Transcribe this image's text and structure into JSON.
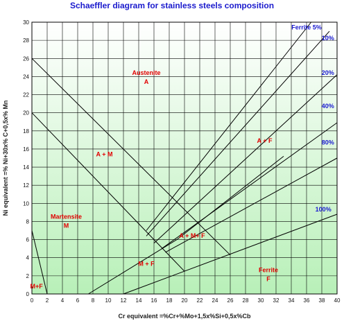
{
  "chart_data": {
    "type": "line",
    "title": "Schaeffler diagram for stainless steels composition",
    "xlabel": "Cr equivalent =%Cr+%Mo+1,5x%Si+0,5x%Cb",
    "ylabel": "Ni equivalent =% Ni+30x% C+0,5x% Mn",
    "xlim": [
      0,
      40
    ],
    "ylim": [
      0,
      30
    ],
    "x_ticks": [
      "0",
      "2",
      "4",
      "6",
      "8",
      "10",
      "12",
      "14",
      "16",
      "18",
      "20",
      "22",
      "24",
      "26",
      "28",
      "30",
      "32",
      "34",
      "36",
      "38",
      "40"
    ],
    "y_ticks": [
      "0",
      "2",
      "4",
      "6",
      "8",
      "10",
      "12",
      "14",
      "16",
      "18",
      "20",
      "22",
      "24",
      "26",
      "28",
      "30"
    ],
    "grid": true,
    "series": [
      {
        "points": [
          [
            0,
            26
          ],
          [
            26,
            4.3
          ]
        ]
      },
      {
        "points": [
          [
            0,
            20
          ],
          [
            20,
            2.5
          ]
        ]
      },
      {
        "points": [
          [
            0,
            7
          ],
          [
            2,
            0
          ]
        ]
      },
      {
        "points": [
          [
            7.4,
            0
          ],
          [
            19,
            6
          ],
          [
            33,
            15.2
          ]
        ]
      },
      {
        "points": [
          [
            12,
            0
          ],
          [
            40,
            8.8
          ]
        ]
      },
      {
        "points": [
          [
            15,
            7
          ],
          [
            36.6,
            30
          ]
        ]
      },
      {
        "points": [
          [
            15,
            6.4
          ],
          [
            39,
            29
          ]
        ]
      },
      {
        "points": [
          [
            16,
            5.6
          ],
          [
            40,
            24.2
          ]
        ]
      },
      {
        "points": [
          [
            17,
            5
          ],
          [
            40,
            18.9
          ]
        ]
      },
      {
        "points": [
          [
            17.5,
            4.6
          ],
          [
            40,
            15
          ]
        ]
      }
    ],
    "annotations": [
      {
        "text": "Austenite",
        "x": 15,
        "y": 24.2
      },
      {
        "text": "A",
        "x": 15,
        "y": 23.2
      },
      {
        "text": "A + M",
        "x": 9.5,
        "y": 15.2
      },
      {
        "text": "A + F",
        "x": 30.5,
        "y": 16.7
      },
      {
        "text": "Martensite",
        "x": 4.5,
        "y": 8.3
      },
      {
        "text": "M",
        "x": 4.5,
        "y": 7.3
      },
      {
        "text": "A + M+ F",
        "x": 21,
        "y": 6.2
      },
      {
        "text": "M + F",
        "x": 15,
        "y": 3.1
      },
      {
        "text": "M+F",
        "x": 0.6,
        "y": 0.6
      },
      {
        "text": "Ferrite",
        "x": 31,
        "y": 2.4
      },
      {
        "text": "F",
        "x": 31,
        "y": 1.4
      }
    ],
    "ferrite_labels": [
      {
        "text": "Ferrite  5%",
        "x": 36,
        "y": 29.2
      },
      {
        "text": "10%",
        "x": 38.8,
        "y": 28
      },
      {
        "text": "20%",
        "x": 38.8,
        "y": 24.2
      },
      {
        "text": "40%",
        "x": 38.8,
        "y": 20.5
      },
      {
        "text": "80%",
        "x": 38.8,
        "y": 16.5
      },
      {
        "text": "100%",
        "x": 38.2,
        "y": 9.1
      }
    ],
    "colors": {
      "title": "#1a1acd",
      "region_labels": "#e00000",
      "ferrite_labels": "#1a1ad0",
      "gradient_top": "#ffffff",
      "gradient_bottom": "#b8f0b8"
    }
  }
}
